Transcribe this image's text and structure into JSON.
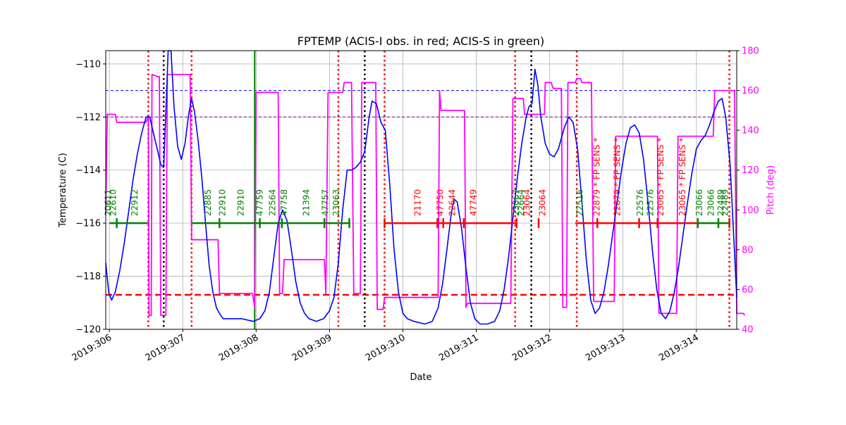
{
  "chart_data": {
    "type": "line",
    "title": "FPTEMP (ACIS-I obs. in red; ACIS-S in green)",
    "xlabel": "Date",
    "ylabel": "Temperature (C)",
    "y2label": "Pitch (deg)",
    "xlim": [
      305.95,
      314.55
    ],
    "ylim": [
      -120,
      -109.5
    ],
    "y2lim": [
      40,
      180
    ],
    "x_ticks": [
      306,
      307,
      308,
      309,
      310,
      311,
      312,
      313,
      314
    ],
    "x_tick_labels": [
      "2019:306",
      "2019:307",
      "2019:308",
      "2019:309",
      "2019:310",
      "2019:311",
      "2019:312",
      "2019:313",
      "2019:314"
    ],
    "y_ticks": [
      -120,
      -118,
      -116,
      -114,
      -112,
      -110
    ],
    "y_tick_labels": [
      "−120",
      "−118",
      "−116",
      "−114",
      "−112",
      "−110"
    ],
    "y2_ticks": [
      40,
      60,
      80,
      100,
      120,
      140,
      160,
      180
    ],
    "y2_tick_labels": [
      "40",
      "60",
      "80",
      "100",
      "120",
      "140",
      "160",
      "180"
    ],
    "grid": true,
    "colors": {
      "temperature": "#0000ff",
      "pitch": "#ff00ff",
      "acis_i": "#ff0000",
      "acis_s": "#008000",
      "reference_blue": "#0000ff",
      "reference_purple": "#800080",
      "limit_red": "#ff0000",
      "marker_black": "#000000"
    },
    "hlines": [
      {
        "y": -111,
        "style": "blue-dashed"
      },
      {
        "y": -112,
        "style": "purple-dashed"
      },
      {
        "y": -118.7,
        "style": "red-dashed-thick"
      }
    ],
    "red_dotted_vlines": [
      306.53,
      307.12,
      309.12,
      309.75,
      311.53,
      312.37,
      314.45
    ],
    "black_dotted_vlines": [
      306.74,
      309.48,
      311.75
    ],
    "green_solid_vlines": [
      307.98
    ],
    "temperature_series": [
      [
        305.95,
        -117.5
      ],
      [
        305.99,
        -118.6
      ],
      [
        306.03,
        -118.9
      ],
      [
        306.08,
        -118.6
      ],
      [
        306.14,
        -117.8
      ],
      [
        306.2,
        -116.8
      ],
      [
        306.26,
        -115.6
      ],
      [
        306.32,
        -114.4
      ],
      [
        306.38,
        -113.4
      ],
      [
        306.44,
        -112.6
      ],
      [
        306.5,
        -112.0
      ],
      [
        306.55,
        -112.0
      ],
      [
        306.6,
        -112.6
      ],
      [
        306.66,
        -113.3
      ],
      [
        306.7,
        -113.8
      ],
      [
        306.74,
        -113.9
      ],
      [
        306.77,
        -111.8
      ],
      [
        306.8,
        -109.5
      ],
      [
        306.84,
        -109.5
      ],
      [
        306.88,
        -111.6
      ],
      [
        306.93,
        -113.1
      ],
      [
        306.98,
        -113.6
      ],
      [
        307.03,
        -113.0
      ],
      [
        307.08,
        -111.9
      ],
      [
        307.12,
        -111.3
      ],
      [
        307.16,
        -111.8
      ],
      [
        307.21,
        -112.9
      ],
      [
        307.26,
        -114.3
      ],
      [
        307.31,
        -116.0
      ],
      [
        307.36,
        -117.6
      ],
      [
        307.41,
        -118.6
      ],
      [
        307.46,
        -119.2
      ],
      [
        307.5,
        -119.4
      ],
      [
        307.55,
        -119.6
      ],
      [
        307.65,
        -119.6
      ],
      [
        307.8,
        -119.6
      ],
      [
        307.96,
        -119.7
      ],
      [
        308.05,
        -119.6
      ],
      [
        308.12,
        -119.3
      ],
      [
        308.18,
        -118.6
      ],
      [
        308.24,
        -117.3
      ],
      [
        308.3,
        -116.0
      ],
      [
        308.36,
        -115.5
      ],
      [
        308.42,
        -115.9
      ],
      [
        308.48,
        -117.0
      ],
      [
        308.54,
        -118.2
      ],
      [
        308.6,
        -119.0
      ],
      [
        308.66,
        -119.4
      ],
      [
        308.72,
        -119.6
      ],
      [
        308.82,
        -119.7
      ],
      [
        308.92,
        -119.6
      ],
      [
        309.0,
        -119.3
      ],
      [
        309.06,
        -118.8
      ],
      [
        309.12,
        -117.5
      ],
      [
        309.18,
        -115.5
      ],
      [
        309.24,
        -114.0
      ],
      [
        309.3,
        -114.0
      ],
      [
        309.36,
        -113.9
      ],
      [
        309.42,
        -113.7
      ],
      [
        309.48,
        -113.3
      ],
      [
        309.54,
        -112.0
      ],
      [
        309.58,
        -111.4
      ],
      [
        309.64,
        -111.5
      ],
      [
        309.7,
        -112.2
      ],
      [
        309.76,
        -112.5
      ],
      [
        309.82,
        -114.5
      ],
      [
        309.88,
        -117.0
      ],
      [
        309.94,
        -118.6
      ],
      [
        310.0,
        -119.4
      ],
      [
        310.06,
        -119.6
      ],
      [
        310.15,
        -119.7
      ],
      [
        310.3,
        -119.8
      ],
      [
        310.4,
        -119.7
      ],
      [
        310.48,
        -119.2
      ],
      [
        310.54,
        -118.3
      ],
      [
        310.6,
        -117.0
      ],
      [
        310.66,
        -115.6
      ],
      [
        310.7,
        -115.1
      ],
      [
        310.74,
        -115.2
      ],
      [
        310.8,
        -116.2
      ],
      [
        310.86,
        -117.7
      ],
      [
        310.92,
        -119.0
      ],
      [
        310.98,
        -119.6
      ],
      [
        311.05,
        -119.8
      ],
      [
        311.15,
        -119.8
      ],
      [
        311.25,
        -119.7
      ],
      [
        311.32,
        -119.3
      ],
      [
        311.38,
        -118.5
      ],
      [
        311.44,
        -117.3
      ],
      [
        311.5,
        -115.8
      ],
      [
        311.56,
        -114.3
      ],
      [
        311.62,
        -113.0
      ],
      [
        311.68,
        -112.0
      ],
      [
        311.72,
        -111.6
      ],
      [
        311.76,
        -111.5
      ],
      [
        311.8,
        -110.2
      ],
      [
        311.84,
        -110.8
      ],
      [
        311.88,
        -112.0
      ],
      [
        311.94,
        -113.0
      ],
      [
        312.0,
        -113.4
      ],
      [
        312.06,
        -113.5
      ],
      [
        312.12,
        -113.2
      ],
      [
        312.2,
        -112.4
      ],
      [
        312.26,
        -112.0
      ],
      [
        312.32,
        -112.2
      ],
      [
        312.38,
        -113.2
      ],
      [
        312.44,
        -115.2
      ],
      [
        312.5,
        -117.4
      ],
      [
        312.56,
        -118.9
      ],
      [
        312.62,
        -119.4
      ],
      [
        312.68,
        -119.2
      ],
      [
        312.74,
        -118.6
      ],
      [
        312.8,
        -117.6
      ],
      [
        312.86,
        -116.4
      ],
      [
        312.92,
        -115.2
      ],
      [
        312.98,
        -114.0
      ],
      [
        313.04,
        -113.0
      ],
      [
        313.1,
        -112.4
      ],
      [
        313.16,
        -112.3
      ],
      [
        313.22,
        -112.6
      ],
      [
        313.28,
        -113.6
      ],
      [
        313.34,
        -115.2
      ],
      [
        313.4,
        -117.0
      ],
      [
        313.46,
        -118.5
      ],
      [
        313.52,
        -119.4
      ],
      [
        313.58,
        -119.6
      ],
      [
        313.64,
        -119.3
      ],
      [
        313.7,
        -118.6
      ],
      [
        313.76,
        -117.6
      ],
      [
        313.82,
        -116.4
      ],
      [
        313.88,
        -115.2
      ],
      [
        313.94,
        -114.1
      ],
      [
        314.0,
        -113.2
      ],
      [
        314.06,
        -112.9
      ],
      [
        314.12,
        -112.7
      ],
      [
        314.18,
        -112.3
      ],
      [
        314.24,
        -111.8
      ],
      [
        314.3,
        -111.4
      ],
      [
        314.35,
        -111.3
      ],
      [
        314.4,
        -112.0
      ],
      [
        314.46,
        -113.8
      ],
      [
        314.5,
        -116.0
      ],
      [
        314.55,
        -118.8
      ]
    ],
    "pitch_series": [
      [
        305.95,
        98
      ],
      [
        305.97,
        148
      ],
      [
        306.08,
        148
      ],
      [
        306.1,
        144
      ],
      [
        306.5,
        144
      ],
      [
        306.53,
        147
      ],
      [
        306.54,
        47
      ],
      [
        306.57,
        47
      ],
      [
        306.58,
        168
      ],
      [
        306.66,
        167
      ],
      [
        306.68,
        167
      ],
      [
        306.7,
        47
      ],
      [
        306.77,
        47
      ],
      [
        306.79,
        168
      ],
      [
        307.1,
        168
      ],
      [
        307.12,
        85
      ],
      [
        307.48,
        85
      ],
      [
        307.5,
        58
      ],
      [
        307.95,
        58
      ],
      [
        307.98,
        51
      ],
      [
        308.0,
        159
      ],
      [
        308.3,
        159
      ],
      [
        308.32,
        58
      ],
      [
        308.36,
        58
      ],
      [
        308.38,
        75
      ],
      [
        308.93,
        75
      ],
      [
        308.95,
        58
      ],
      [
        308.98,
        159
      ],
      [
        309.18,
        159
      ],
      [
        309.2,
        164
      ],
      [
        309.3,
        164
      ],
      [
        309.33,
        58
      ],
      [
        309.42,
        58
      ],
      [
        309.44,
        164
      ],
      [
        309.63,
        164
      ],
      [
        309.65,
        50
      ],
      [
        309.73,
        50
      ],
      [
        309.75,
        56
      ],
      [
        310.48,
        56
      ],
      [
        310.5,
        160
      ],
      [
        310.52,
        150
      ],
      [
        310.84,
        150
      ],
      [
        310.86,
        51
      ],
      [
        310.88,
        53
      ],
      [
        311.47,
        53
      ],
      [
        311.5,
        156
      ],
      [
        311.64,
        156
      ],
      [
        311.66,
        148
      ],
      [
        311.93,
        148
      ],
      [
        311.94,
        164
      ],
      [
        312.02,
        164
      ],
      [
        312.05,
        161
      ],
      [
        312.16,
        161
      ],
      [
        312.18,
        51
      ],
      [
        312.23,
        51
      ],
      [
        312.25,
        164
      ],
      [
        312.35,
        164
      ],
      [
        312.37,
        166
      ],
      [
        312.42,
        166
      ],
      [
        312.44,
        164
      ],
      [
        312.57,
        164
      ],
      [
        312.6,
        54
      ],
      [
        312.88,
        54
      ],
      [
        312.9,
        137
      ],
      [
        313.47,
        137
      ],
      [
        313.49,
        48
      ],
      [
        313.73,
        48
      ],
      [
        313.75,
        137
      ],
      [
        314.23,
        137
      ],
      [
        314.25,
        160
      ],
      [
        314.52,
        160
      ],
      [
        314.55,
        48
      ],
      [
        314.64,
        48
      ],
      [
        314.66,
        47
      ]
    ],
    "obs_bars_green": [
      {
        "x1": 306.0,
        "x2": 306.53
      },
      {
        "x1": 307.12,
        "x2": 309.27
      }
    ],
    "obs_bars_red": [
      {
        "x1": 309.75,
        "x2": 311.55
      },
      {
        "x1": 312.35,
        "x2": 314.02
      }
    ],
    "obs_bar_green_tail": {
      "x1": 314.02,
      "x2": 314.45
    },
    "obs_y": -116,
    "obs_ticks_green": [
      306.1,
      307.5,
      308.05,
      308.35,
      308.93,
      309.27,
      314.02,
      314.3
    ],
    "obs_ticks_red": [
      309.75,
      310.47,
      310.55,
      310.83,
      311.55,
      311.85,
      312.65,
      313.22,
      313.47,
      314.45
    ],
    "obs_labels": [
      {
        "text": "20611",
        "x": 306.02,
        "color": "green"
      },
      {
        "text": "22610",
        "x": 306.09,
        "color": "green"
      },
      {
        "text": "22912",
        "x": 306.38,
        "color": "green"
      },
      {
        "text": "22885",
        "x": 307.38,
        "color": "green"
      },
      {
        "text": "22910",
        "x": 307.58,
        "color": "green"
      },
      {
        "text": "22910",
        "x": 307.83,
        "color": "green"
      },
      {
        "text": "47759",
        "x": 308.09,
        "color": "green"
      },
      {
        "text": "22564",
        "x": 308.26,
        "color": "green"
      },
      {
        "text": "47758",
        "x": 308.42,
        "color": "green"
      },
      {
        "text": "21394",
        "x": 308.72,
        "color": "green"
      },
      {
        "text": "47757",
        "x": 308.98,
        "color": "green"
      },
      {
        "text": "23063",
        "x": 309.13,
        "color": "green"
      },
      {
        "text": "21170",
        "x": 310.24,
        "color": "red"
      },
      {
        "text": "47750",
        "x": 310.55,
        "color": "red"
      },
      {
        "text": "22644",
        "x": 310.71,
        "color": "red"
      },
      {
        "text": "47749",
        "x": 311.0,
        "color": "red"
      },
      {
        "text": "23067",
        "x": 311.58,
        "color": "green"
      },
      {
        "text": "22664",
        "x": 311.65,
        "color": "green"
      },
      {
        "text": "23064",
        "x": 311.73,
        "color": "red"
      },
      {
        "text": "23064",
        "x": 311.94,
        "color": "red"
      },
      {
        "text": "22516",
        "x": 312.45,
        "color": "green"
      },
      {
        "text": "22879 * FP SENS *",
        "x": 312.68,
        "color": "red"
      },
      {
        "text": "22879 * FP SENS *",
        "x": 312.96,
        "color": "red"
      },
      {
        "text": "22576",
        "x": 313.27,
        "color": "green"
      },
      {
        "text": "22576",
        "x": 313.41,
        "color": "green"
      },
      {
        "text": "23065 * FP SENS *",
        "x": 313.55,
        "color": "red"
      },
      {
        "text": "23065 * FP SENS *",
        "x": 313.85,
        "color": "red"
      },
      {
        "text": "23066",
        "x": 314.08,
        "color": "green"
      },
      {
        "text": "23066",
        "x": 314.24,
        "color": "green"
      },
      {
        "text": "22489",
        "x": 314.37,
        "color": "green"
      },
      {
        "text": "22489",
        "x": 314.43,
        "color": "green"
      }
    ]
  }
}
